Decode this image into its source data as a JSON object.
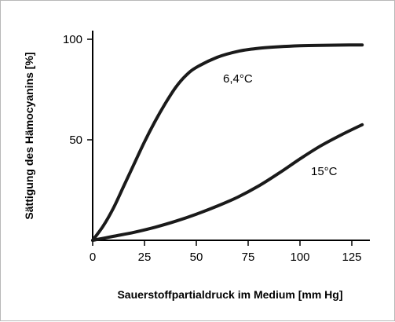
{
  "chart_data": {
    "type": "line",
    "title": "",
    "xlabel": "Sauerstoffpartialdruck im Medium [mm Hg]",
    "ylabel": "Sättigung des Hämocyanins [%]",
    "xlim": [
      0,
      130
    ],
    "ylim": [
      0,
      100
    ],
    "x_ticks": [
      "0",
      "25",
      "50",
      "75",
      "100",
      "125"
    ],
    "y_ticks": [
      "50",
      "100"
    ],
    "grid": false,
    "line_color": "#1a1a1a",
    "series": [
      {
        "name": "6,4°C",
        "x": [
          0,
          5,
          10,
          15,
          20,
          25,
          30,
          35,
          40,
          45,
          50,
          60,
          70,
          80,
          90,
          100,
          110,
          120,
          130
        ],
        "y": [
          0,
          7,
          16,
          27,
          38,
          49,
          59,
          68,
          76,
          82,
          86,
          91,
          94,
          95.5,
          96.3,
          96.8,
          97,
          97.1,
          97.2
        ]
      },
      {
        "name": "15°C",
        "x": [
          0,
          10,
          20,
          30,
          40,
          50,
          60,
          70,
          80,
          90,
          100,
          110,
          120,
          130
        ],
        "y": [
          0,
          2,
          4,
          6.5,
          9.5,
          13,
          17,
          21.5,
          27,
          33.5,
          40.5,
          47,
          52.5,
          57.5
        ]
      }
    ]
  }
}
